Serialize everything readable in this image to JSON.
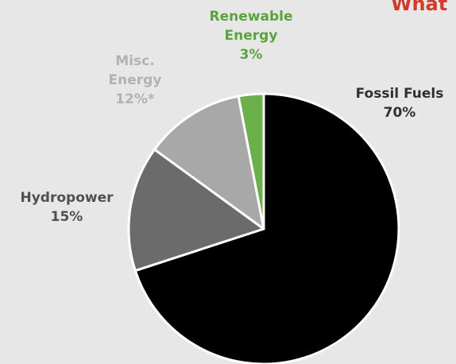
{
  "chart_data": {
    "type": "pie",
    "title": "What",
    "slices": [
      {
        "label_lines": [
          "Fossil Fuels",
          "70%"
        ],
        "value": 70,
        "color": "#000000",
        "label_color": "#303030"
      },
      {
        "label_lines": [
          "Hydropower",
          "15%"
        ],
        "value": 15,
        "color": "#6b6b6b",
        "label_color": "#505050"
      },
      {
        "label_lines": [
          "Misc.",
          "Energy",
          "12%*"
        ],
        "value": 12,
        "color": "#a8a8a8",
        "label_color": "#b2b2b2"
      },
      {
        "label_lines": [
          "Renewable",
          "Energy",
          "3%"
        ],
        "value": 3,
        "color": "#6aaf4a",
        "label_color": "#5aa33d"
      }
    ],
    "title_color": "#d23b2a"
  }
}
